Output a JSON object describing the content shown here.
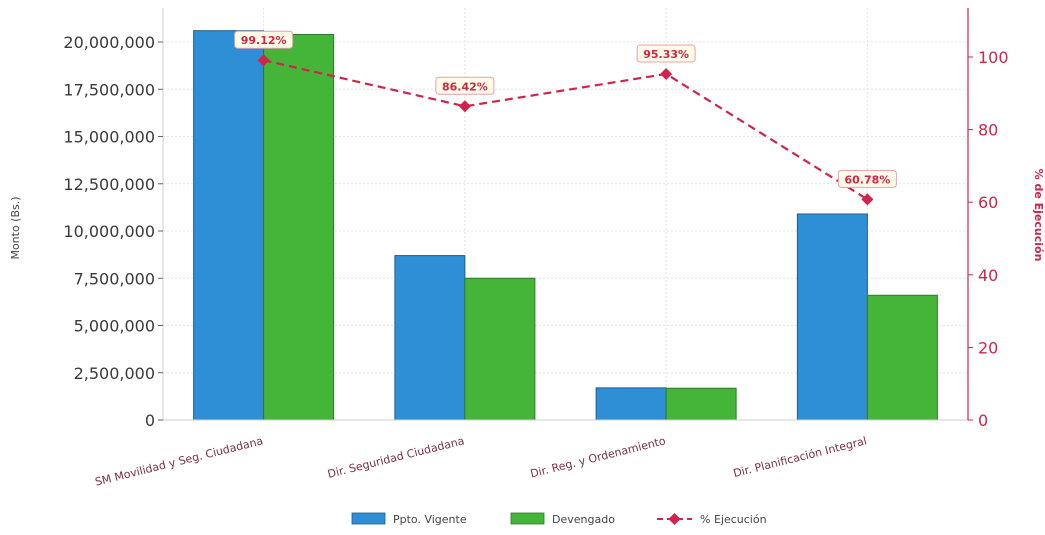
{
  "chart_data": {
    "type": "bar",
    "categories": [
      "SM Movilidad y Seg. Ciudadana",
      "Dir. Seguridad Ciudadana",
      "Dir. Reg. y Ordenamiento",
      "Dir. Planificación Integral"
    ],
    "series": [
      {
        "name": "Ppto. Vigente",
        "type": "bar",
        "axis": "left",
        "color": "#2f8fd6",
        "values": [
          20600000,
          8700000,
          1700000,
          10900000
        ]
      },
      {
        "name": "Devengado",
        "type": "bar",
        "axis": "left",
        "color": "#45b53a",
        "values": [
          20400000,
          7500000,
          1680000,
          6600000
        ]
      },
      {
        "name": "% Ejecución",
        "type": "line",
        "axis": "right",
        "color": "#d0244a",
        "style": "dashed",
        "values": [
          99.12,
          86.42,
          95.33,
          60.78
        ],
        "labels": [
          "99.12%",
          "86.42%",
          "95.33%",
          "60.78%"
        ]
      }
    ],
    "ylabel": "Monto (Bs.)",
    "y2label": "% de Ejecución",
    "ylim": [
      0,
      21800000
    ],
    "y2lim": [
      0,
      113.5
    ],
    "yticks": [
      0,
      2500000,
      5000000,
      7500000,
      10000000,
      12500000,
      15000000,
      17500000,
      20000000
    ],
    "ytick_labels": [
      "0",
      "2,500,000",
      "5,000,000",
      "7,500,000",
      "10,000,000",
      "12,500,000",
      "15,000,000",
      "17,500,000",
      "20,000,000"
    ],
    "y2ticks": [
      0,
      20,
      40,
      60,
      80,
      100
    ],
    "y2tick_labels": [
      "0",
      "20",
      "40",
      "60",
      "80",
      "100"
    ],
    "grid": true,
    "legend": "bottom-center"
  }
}
